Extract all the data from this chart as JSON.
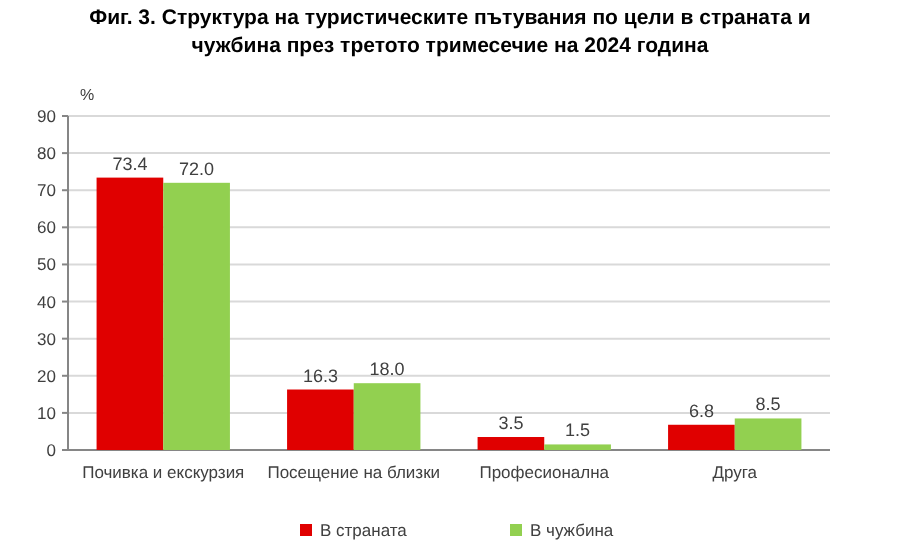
{
  "chart_data": {
    "type": "bar",
    "title": "Фиг. 3. Структура на туристическите пътувания по цели в страната и чужбина през третото тримесечие на 2024 година",
    "ylabel": "%",
    "categories": [
      "Почивка и екскурзия",
      "Посещение на близки",
      "Професионална",
      "Друга"
    ],
    "series": [
      {
        "name": "В страната",
        "color": "#e00000",
        "values": [
          73.4,
          16.3,
          3.5,
          6.8
        ],
        "value_labels": [
          "73.4",
          "16.3",
          "3.5",
          "6.8"
        ]
      },
      {
        "name": "В чужбина",
        "color": "#92d050",
        "values": [
          72.0,
          18.0,
          1.5,
          8.5
        ],
        "value_labels": [
          "72.0",
          "18.0",
          "1.5",
          "8.5"
        ]
      }
    ],
    "ylim": [
      0,
      90
    ],
    "yticks": [
      0,
      10,
      20,
      30,
      40,
      50,
      60,
      70,
      80,
      90
    ],
    "grid": "y",
    "legend": "bottom"
  }
}
